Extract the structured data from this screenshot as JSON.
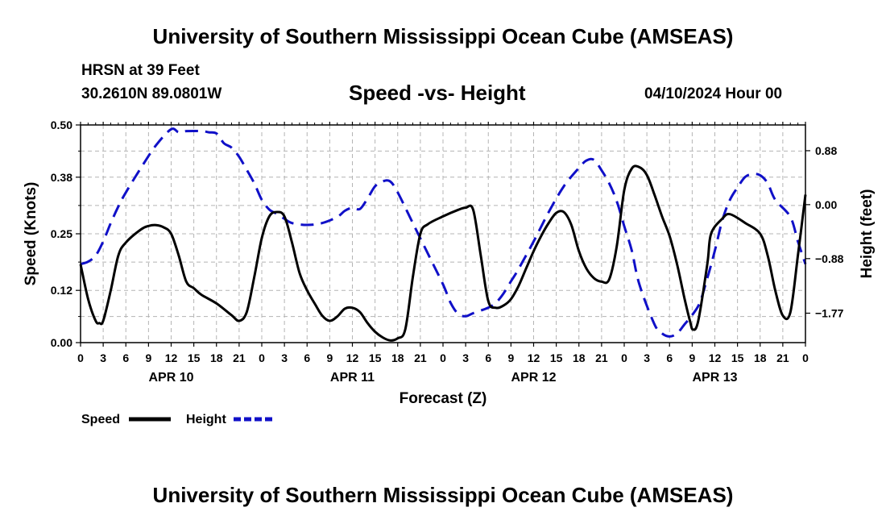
{
  "header": {
    "title": "University of Southern Mississippi Ocean Cube (AMSEAS)",
    "station": "HRSN at 39 Feet",
    "coordinates": "30.2610N  89.0801W",
    "subtitle": "Speed -vs- Height",
    "date": "04/10/2024 Hour 00"
  },
  "footer": {
    "title": "University of Southern Mississippi Ocean Cube (AMSEAS)"
  },
  "colors": {
    "speed": "#000000",
    "height": "#1010c8",
    "grid": "#b4b4b4"
  },
  "chart_data": {
    "type": "line",
    "title": "Speed -vs- Height",
    "xlabel": "Forecast (Z)",
    "ylabel": "Speed (Knots)",
    "ylabel_right": "Height (feet)",
    "grid": true,
    "legend_position": "bottom-left",
    "x_range_hours": [
      0,
      96
    ],
    "ylim": [
      0,
      0.5
    ],
    "y_ticks": [
      0.0,
      0.12,
      0.25,
      0.38,
      0.5
    ],
    "y_tick_labels": [
      "0.00",
      "0.12",
      "0.25",
      "0.38",
      "0.50"
    ],
    "ylim_right": [
      -2.25,
      1.3
    ],
    "y_right_ticks": [
      0.88,
      0.0,
      -0.88,
      -1.77
    ],
    "y_right_tick_labels": [
      "0.88",
      "0.00",
      "−0.88",
      "−1.77"
    ],
    "x_tick_hours": [
      0,
      3,
      6,
      9,
      12,
      15,
      18,
      21,
      24,
      27,
      30,
      33,
      36,
      39,
      42,
      45,
      48,
      51,
      54,
      57,
      60,
      63,
      66,
      69,
      72,
      75,
      78,
      81,
      84,
      87,
      90,
      93,
      96
    ],
    "x_tick_labels": [
      "0",
      "3",
      "6",
      "9",
      "12",
      "15",
      "18",
      "21",
      "0",
      "3",
      "6",
      "9",
      "12",
      "15",
      "18",
      "21",
      "0",
      "3",
      "6",
      "9",
      "12",
      "15",
      "18",
      "21",
      "0",
      "3",
      "6",
      "9",
      "12",
      "15",
      "18",
      "21",
      "0"
    ],
    "day_labels": [
      {
        "label": "APR 10",
        "hour": 12
      },
      {
        "label": "APR 11",
        "hour": 36
      },
      {
        "label": "APR 12",
        "hour": 60
      },
      {
        "label": "APR 13",
        "hour": 84
      }
    ],
    "series": [
      {
        "name": "Speed",
        "axis": "left",
        "style": "solid",
        "points": [
          [
            0,
            0.18
          ],
          [
            1,
            0.1
          ],
          [
            2,
            0.05
          ],
          [
            2.5,
            0.045
          ],
          [
            3,
            0.05
          ],
          [
            4,
            0.12
          ],
          [
            5,
            0.2
          ],
          [
            6,
            0.23
          ],
          [
            8,
            0.26
          ],
          [
            9,
            0.268
          ],
          [
            10,
            0.27
          ],
          [
            11,
            0.265
          ],
          [
            12,
            0.25
          ],
          [
            13,
            0.2
          ],
          [
            14,
            0.14
          ],
          [
            15,
            0.125
          ],
          [
            16,
            0.11
          ],
          [
            18,
            0.09
          ],
          [
            20,
            0.063
          ],
          [
            21,
            0.05
          ],
          [
            22,
            0.07
          ],
          [
            23,
            0.15
          ],
          [
            24,
            0.24
          ],
          [
            25,
            0.29
          ],
          [
            26,
            0.3
          ],
          [
            27,
            0.29
          ],
          [
            28,
            0.23
          ],
          [
            29,
            0.16
          ],
          [
            30,
            0.12
          ],
          [
            31,
            0.09
          ],
          [
            32,
            0.062
          ],
          [
            33,
            0.05
          ],
          [
            34,
            0.06
          ],
          [
            35,
            0.078
          ],
          [
            36,
            0.08
          ],
          [
            37,
            0.07
          ],
          [
            38,
            0.045
          ],
          [
            39,
            0.025
          ],
          [
            40,
            0.012
          ],
          [
            41,
            0.005
          ],
          [
            42,
            0.01
          ],
          [
            43,
            0.03
          ],
          [
            44,
            0.15
          ],
          [
            45,
            0.25
          ],
          [
            46,
            0.272
          ],
          [
            48,
            0.29
          ],
          [
            50,
            0.305
          ],
          [
            51,
            0.31
          ],
          [
            52,
            0.305
          ],
          [
            53,
            0.2
          ],
          [
            54,
            0.095
          ],
          [
            55,
            0.08
          ],
          [
            56,
            0.085
          ],
          [
            57,
            0.1
          ],
          [
            58,
            0.13
          ],
          [
            59,
            0.17
          ],
          [
            60,
            0.21
          ],
          [
            61,
            0.245
          ],
          [
            62,
            0.275
          ],
          [
            63,
            0.298
          ],
          [
            64,
            0.3
          ],
          [
            65,
            0.27
          ],
          [
            66,
            0.21
          ],
          [
            67,
            0.17
          ],
          [
            68,
            0.148
          ],
          [
            69,
            0.14
          ],
          [
            70,
            0.145
          ],
          [
            71,
            0.22
          ],
          [
            72,
            0.35
          ],
          [
            73,
            0.4
          ],
          [
            74,
            0.403
          ],
          [
            75,
            0.385
          ],
          [
            76,
            0.34
          ],
          [
            77,
            0.29
          ],
          [
            78,
            0.245
          ],
          [
            79,
            0.18
          ],
          [
            80,
            0.1
          ],
          [
            80.7,
            0.05
          ],
          [
            81.1,
            0.03
          ],
          [
            81.8,
            0.05
          ],
          [
            83,
            0.18
          ],
          [
            83.5,
            0.25
          ],
          [
            85,
            0.285
          ],
          [
            86,
            0.295
          ],
          [
            88,
            0.275
          ],
          [
            90,
            0.25
          ],
          [
            91,
            0.2
          ],
          [
            92,
            0.12
          ],
          [
            93,
            0.062
          ],
          [
            94,
            0.07
          ],
          [
            95,
            0.2
          ],
          [
            96,
            0.34
          ]
        ]
      },
      {
        "name": "Height",
        "axis": "right",
        "style": "dashed",
        "points": [
          [
            0,
            -0.97
          ],
          [
            1,
            -0.93
          ],
          [
            2,
            -0.83
          ],
          [
            3,
            -0.6
          ],
          [
            4,
            -0.3
          ],
          [
            5,
            -0.03
          ],
          [
            6,
            0.2
          ],
          [
            8,
            0.6
          ],
          [
            10,
            0.97
          ],
          [
            12,
            1.23
          ],
          [
            13,
            1.18
          ],
          [
            14,
            1.2
          ],
          [
            16,
            1.2
          ],
          [
            17,
            1.18
          ],
          [
            18,
            1.16
          ],
          [
            19,
            1.0
          ],
          [
            20,
            0.93
          ],
          [
            21,
            0.78
          ],
          [
            22,
            0.57
          ],
          [
            23,
            0.35
          ],
          [
            24,
            0.08
          ],
          [
            25,
            -0.08
          ],
          [
            26,
            -0.15
          ],
          [
            27,
            -0.23
          ],
          [
            28,
            -0.3
          ],
          [
            30,
            -0.33
          ],
          [
            32,
            -0.3
          ],
          [
            34,
            -0.2
          ],
          [
            35,
            -0.1
          ],
          [
            36,
            -0.05
          ],
          [
            37,
            -0.07
          ],
          [
            38,
            0.1
          ],
          [
            39,
            0.3
          ],
          [
            40,
            0.38
          ],
          [
            41,
            0.38
          ],
          [
            42,
            0.2
          ],
          [
            44,
            -0.3
          ],
          [
            46,
            -0.8
          ],
          [
            48,
            -1.3
          ],
          [
            49,
            -1.6
          ],
          [
            50,
            -1.78
          ],
          [
            51,
            -1.82
          ],
          [
            52,
            -1.77
          ],
          [
            54,
            -1.68
          ],
          [
            55,
            -1.6
          ],
          [
            56,
            -1.45
          ],
          [
            57,
            -1.25
          ],
          [
            58,
            -1.05
          ],
          [
            60,
            -0.6
          ],
          [
            62,
            -0.12
          ],
          [
            64,
            0.3
          ],
          [
            66,
            0.6
          ],
          [
            67,
            0.72
          ],
          [
            68,
            0.73
          ],
          [
            69,
            0.56
          ],
          [
            70,
            0.35
          ],
          [
            71,
            0.06
          ],
          [
            72,
            -0.35
          ],
          [
            73,
            -0.75
          ],
          [
            74,
            -1.3
          ],
          [
            76,
            -1.95
          ],
          [
            77,
            -2.1
          ],
          [
            78,
            -2.15
          ],
          [
            79,
            -2.1
          ],
          [
            80,
            -1.95
          ],
          [
            81,
            -1.8
          ],
          [
            82,
            -1.6
          ],
          [
            83,
            -1.2
          ],
          [
            84,
            -0.75
          ],
          [
            85,
            -0.25
          ],
          [
            86,
            0.08
          ],
          [
            87,
            0.28
          ],
          [
            88,
            0.45
          ],
          [
            89,
            0.5
          ],
          [
            90,
            0.48
          ],
          [
            91,
            0.35
          ],
          [
            92,
            0.08
          ],
          [
            94,
            -0.2
          ],
          [
            95,
            -0.6
          ],
          [
            96,
            -0.97
          ]
        ]
      }
    ]
  }
}
